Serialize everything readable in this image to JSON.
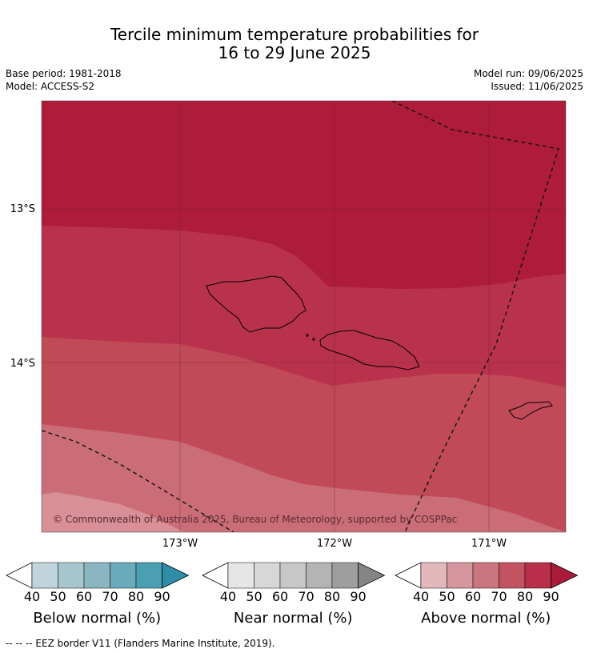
{
  "title": {
    "line1": "Tercile minimum temperature probabilities for",
    "line2": "16 to 29 June 2025"
  },
  "meta": {
    "base_period": "Base period: 1981-2018",
    "model": "Model: ACCESS-S2",
    "model_run": "Model run: 09/06/2025",
    "issued": "Issued: 11/06/2025"
  },
  "map": {
    "lat_labels": [
      "13°S",
      "14°S"
    ],
    "lon_labels": [
      "173°W",
      "172°W",
      "171°W"
    ],
    "copyright": "© Commonwealth of Australia 2025, Bureau of Meteorology, supported by COSPPac",
    "dominant_category": "Above normal",
    "probability_bands_percent": [
      90,
      80,
      70,
      60,
      50
    ]
  },
  "colorbars": [
    {
      "label": "Below normal (%)",
      "ticks": [
        "40",
        "50",
        "60",
        "70",
        "80",
        "90"
      ],
      "colors": [
        "#ffffff",
        "#c0d4db",
        "#a7c6cd",
        "#8ab5c1",
        "#6aaabb",
        "#4a9fb3",
        "#2e8ea8"
      ]
    },
    {
      "label": "Near normal (%)",
      "ticks": [
        "40",
        "50",
        "60",
        "70",
        "80",
        "90"
      ],
      "colors": [
        "#ffffff",
        "#e6e6e6",
        "#d7d7d7",
        "#c7c7c7",
        "#b4b4b4",
        "#9e9e9e",
        "#858585"
      ]
    },
    {
      "label": "Above normal (%)",
      "ticks": [
        "40",
        "50",
        "60",
        "70",
        "80",
        "90"
      ],
      "colors": [
        "#ffffff",
        "#e2b8bd",
        "#d6969d",
        "#cb757e",
        "#c25360",
        "#b92f49",
        "#ab1a3a"
      ]
    }
  ],
  "footer": "--  --  -- EEZ border V11 (Flanders Marine Institute, 2019).",
  "colors": {
    "band90": "#af1c39",
    "band80": "#b9324b",
    "band70": "#c04a57",
    "band60": "#cb6d76",
    "band50": "#d98f96"
  }
}
